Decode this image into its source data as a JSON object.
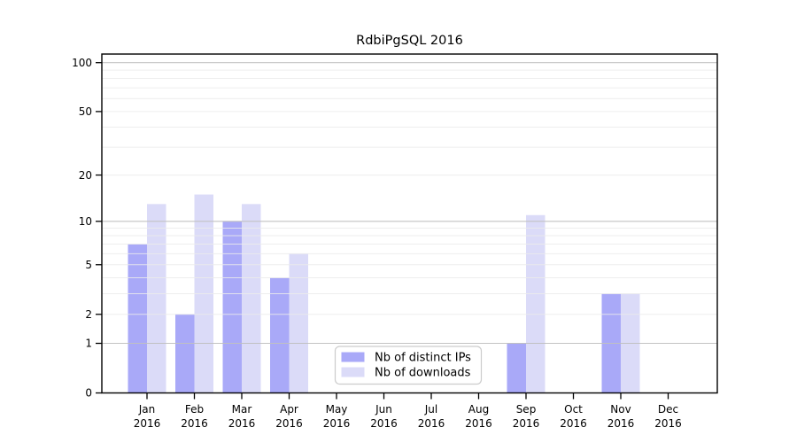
{
  "chart_data": {
    "type": "bar",
    "title": "RdbiPgSQL 2016",
    "categories": [
      "Jan",
      "Feb",
      "Mar",
      "Apr",
      "May",
      "Jun",
      "Jul",
      "Aug",
      "Sep",
      "Oct",
      "Nov",
      "Dec"
    ],
    "x_year_label": "2016",
    "series": [
      {
        "name": "Nb of distinct IPs",
        "color": "#a9a9f8",
        "values": [
          7,
          2,
          10,
          4,
          0,
          0,
          0,
          0,
          1,
          0,
          3,
          0
        ]
      },
      {
        "name": "Nb of downloads",
        "color": "#dbdbf8",
        "values": [
          13,
          15,
          13,
          6,
          0,
          0,
          0,
          0,
          11,
          0,
          3,
          0
        ]
      }
    ],
    "xlabel": "",
    "ylabel": "",
    "y_scale": "log1p",
    "ylim": [
      0,
      100
    ],
    "yticks": [
      0,
      1,
      2,
      5,
      10,
      20,
      50,
      100
    ],
    "grid": {
      "on": true,
      "major_lines": [
        1,
        10,
        100
      ],
      "minor_lines": [
        2,
        3,
        4,
        5,
        6,
        7,
        8,
        9,
        20,
        30,
        40,
        50,
        60,
        70,
        80,
        90
      ],
      "major_color": "#c0c0c0",
      "minor_color": "#ebebeb"
    },
    "legend": {
      "position": "lower center",
      "border_color": "#cccccc",
      "background": "#ffffff"
    },
    "frame_color": "#000000"
  }
}
